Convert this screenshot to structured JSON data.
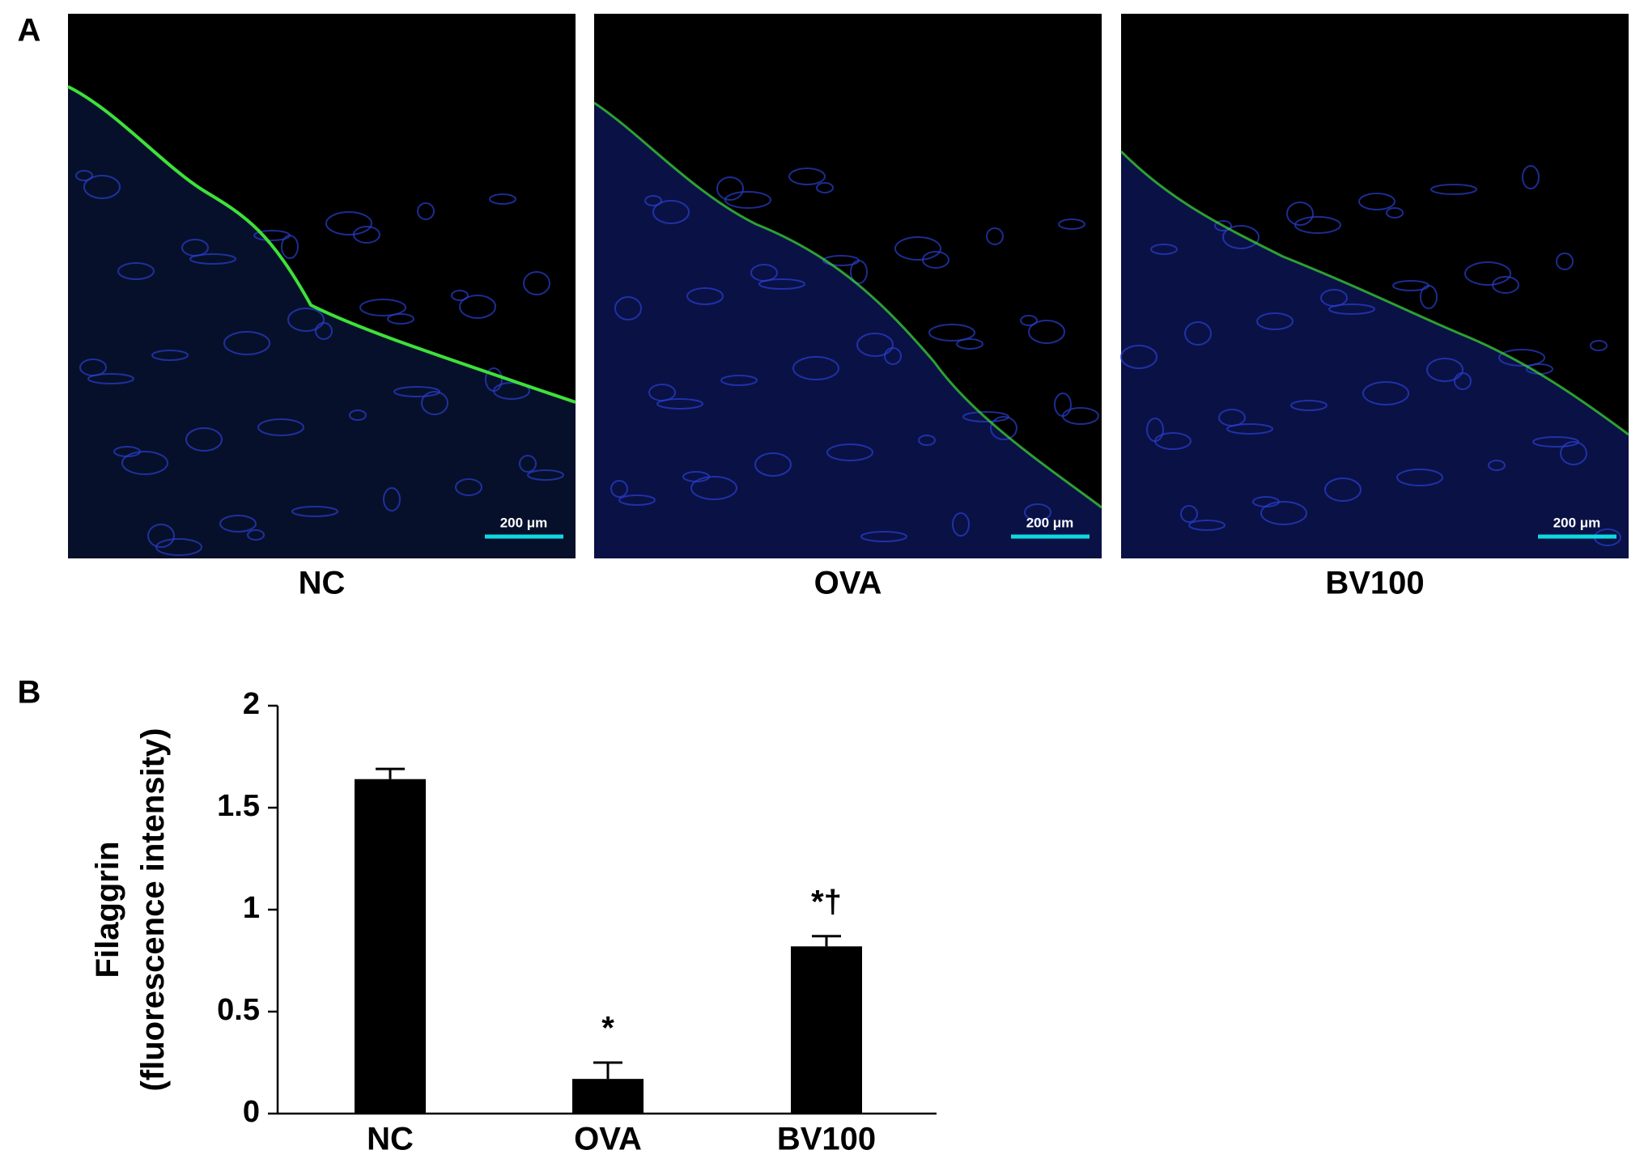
{
  "panel_labels": [
    "A",
    "B"
  ],
  "micrographs": [
    {
      "label": "NC",
      "scale_bar": "200 μm"
    },
    {
      "label": "OVA",
      "scale_bar": "200 μm"
    },
    {
      "label": "BV100",
      "scale_bar": "200 μm"
    }
  ],
  "chart_data": {
    "type": "bar",
    "ylabel": [
      "Filaggrin",
      "(fluorescence intensity)"
    ],
    "categories": [
      "NC",
      "OVA",
      "BV100"
    ],
    "values": [
      1.64,
      0.17,
      0.82
    ],
    "errors": [
      0.05,
      0.08,
      0.05
    ],
    "annotations": [
      null,
      "*",
      "*†"
    ],
    "color": "#000000",
    "ylim": [
      0,
      2
    ],
    "yticks": [
      0,
      0.5,
      1,
      1.5,
      2
    ]
  }
}
